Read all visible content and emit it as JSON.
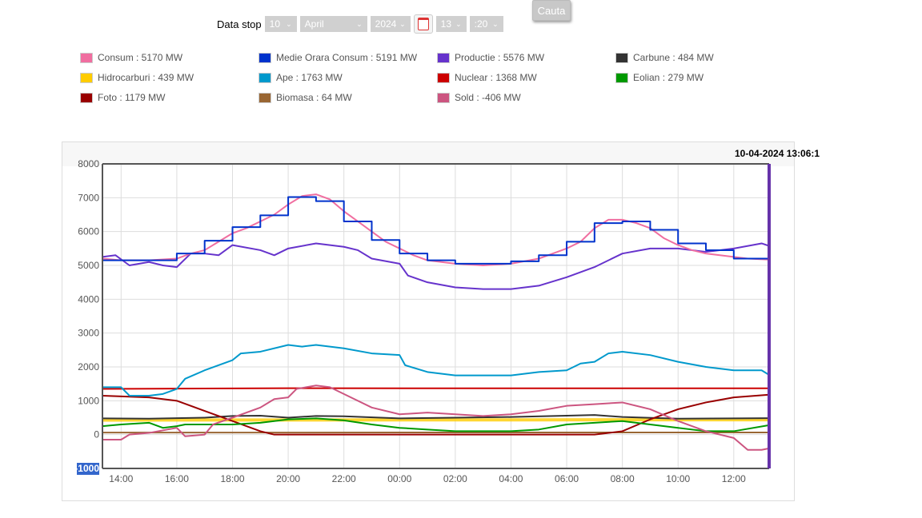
{
  "form": {
    "stop_label": "Data stop",
    "day": "10",
    "month": "April",
    "year": "2024",
    "hour": "13",
    "minute": ":20",
    "search_label": "Cauta"
  },
  "legend": [
    {
      "label": "Consum : 5170 MW",
      "color": "#f06ea0"
    },
    {
      "label": "Medie Orara Consum : 5191 MW",
      "color": "#0033cc"
    },
    {
      "label": "Productie : 5576 MW",
      "color": "#6633cc"
    },
    {
      "label": "Carbune : 484 MW",
      "color": "#333333"
    },
    {
      "label": "Hidrocarburi : 439 MW",
      "color": "#ffcc00"
    },
    {
      "label": "Ape : 1763 MW",
      "color": "#0099cc"
    },
    {
      "label": "Nuclear : 1368 MW",
      "color": "#cc0000"
    },
    {
      "label": "Eolian : 279 MW",
      "color": "#009900"
    },
    {
      "label": "Foto : 1179 MW",
      "color": "#990000"
    },
    {
      "label": "Biomasa : 64 MW",
      "color": "#996633"
    },
    {
      "label": "Sold : -406 MW",
      "color": "#cc5580"
    }
  ],
  "timestamp": "10-04-2024 13:06:1",
  "chart_data": {
    "type": "line",
    "x_unit": "hours since 00:00 of first day",
    "xlim": [
      13.33,
      37.27
    ],
    "ylim": [
      -1000,
      8000
    ],
    "yticks": [
      "8000",
      "7000",
      "6000",
      "5000",
      "4000",
      "3000",
      "2000",
      "1000",
      "0",
      "-1000"
    ],
    "xticks": [
      {
        "x": 14,
        "label": "14:00"
      },
      {
        "x": 16,
        "label": "16:00"
      },
      {
        "x": 18,
        "label": "18:00"
      },
      {
        "x": 20,
        "label": "20:00"
      },
      {
        "x": 22,
        "label": "22:00"
      },
      {
        "x": 24,
        "label": "00:00"
      },
      {
        "x": 26,
        "label": "02:00"
      },
      {
        "x": 28,
        "label": "04:00"
      },
      {
        "x": 30,
        "label": "06:00"
      },
      {
        "x": 32,
        "label": "08:00"
      },
      {
        "x": 34,
        "label": "10:00"
      },
      {
        "x": 36,
        "label": "12:00"
      }
    ],
    "series": [
      {
        "name": "Hidrocarburi",
        "color": "#ffcc00",
        "width": 4,
        "points": [
          [
            13.33,
            430
          ],
          [
            37.27,
            439
          ]
        ]
      },
      {
        "name": "Biomasa",
        "color": "#996633",
        "width": 2,
        "points": [
          [
            13.33,
            60
          ],
          [
            37.27,
            64
          ]
        ]
      },
      {
        "name": "Carbune",
        "color": "#333333",
        "width": 2,
        "points": [
          [
            13.33,
            480
          ],
          [
            15,
            470
          ],
          [
            17,
            500
          ],
          [
            18,
            550
          ],
          [
            19,
            560
          ],
          [
            20,
            500
          ],
          [
            21,
            550
          ],
          [
            22,
            540
          ],
          [
            24,
            480
          ],
          [
            26,
            500
          ],
          [
            28,
            520
          ],
          [
            30,
            560
          ],
          [
            31,
            580
          ],
          [
            32,
            520
          ],
          [
            34,
            470
          ],
          [
            36,
            480
          ],
          [
            37.27,
            484
          ]
        ]
      },
      {
        "name": "Nuclear",
        "color": "#cc0000",
        "width": 2,
        "points": [
          [
            13.33,
            1350
          ],
          [
            20,
            1370
          ],
          [
            37.27,
            1368
          ]
        ]
      },
      {
        "name": "Foto",
        "color": "#990000",
        "width": 2,
        "points": [
          [
            13.33,
            1150
          ],
          [
            15,
            1100
          ],
          [
            16,
            1000
          ],
          [
            17,
            700
          ],
          [
            18,
            400
          ],
          [
            19,
            100
          ],
          [
            19.5,
            0
          ],
          [
            31,
            0
          ],
          [
            32,
            100
          ],
          [
            33,
            450
          ],
          [
            34,
            750
          ],
          [
            35,
            950
          ],
          [
            36,
            1100
          ],
          [
            37.27,
            1179
          ]
        ]
      },
      {
        "name": "Eolian",
        "color": "#009900",
        "width": 2,
        "points": [
          [
            13.33,
            250
          ],
          [
            14,
            300
          ],
          [
            15,
            350
          ],
          [
            15.5,
            200
          ],
          [
            16,
            250
          ],
          [
            16.3,
            300
          ],
          [
            18,
            300
          ],
          [
            19,
            350
          ],
          [
            20,
            450
          ],
          [
            21,
            480
          ],
          [
            22,
            420
          ],
          [
            23,
            300
          ],
          [
            24,
            200
          ],
          [
            25,
            150
          ],
          [
            26,
            100
          ],
          [
            28,
            100
          ],
          [
            29,
            150
          ],
          [
            30,
            300
          ],
          [
            31,
            350
          ],
          [
            32,
            400
          ],
          [
            33,
            300
          ],
          [
            34,
            200
          ],
          [
            35,
            100
          ],
          [
            36,
            100
          ],
          [
            37.27,
            279
          ]
        ]
      },
      {
        "name": "Sold",
        "color": "#cc5580",
        "width": 2,
        "points": [
          [
            13.33,
            -150
          ],
          [
            14,
            -150
          ],
          [
            14.3,
            0
          ],
          [
            15,
            50
          ],
          [
            16,
            200
          ],
          [
            16.3,
            -50
          ],
          [
            17,
            0
          ],
          [
            17.3,
            300
          ],
          [
            18,
            500
          ],
          [
            19,
            800
          ],
          [
            19.5,
            1050
          ],
          [
            20,
            1100
          ],
          [
            20.3,
            1350
          ],
          [
            21,
            1450
          ],
          [
            21.5,
            1400
          ],
          [
            22,
            1200
          ],
          [
            23,
            800
          ],
          [
            24,
            600
          ],
          [
            25,
            650
          ],
          [
            26,
            600
          ],
          [
            27,
            550
          ],
          [
            28,
            600
          ],
          [
            29,
            700
          ],
          [
            30,
            850
          ],
          [
            31,
            900
          ],
          [
            32,
            950
          ],
          [
            33,
            750
          ],
          [
            34,
            400
          ],
          [
            35,
            100
          ],
          [
            36,
            -100
          ],
          [
            36.5,
            -450
          ],
          [
            37,
            -450
          ],
          [
            37.27,
            -406
          ]
        ]
      },
      {
        "name": "Ape",
        "color": "#0099cc",
        "width": 2,
        "points": [
          [
            13.33,
            1400
          ],
          [
            14,
            1400
          ],
          [
            14.3,
            1150
          ],
          [
            15,
            1150
          ],
          [
            15.5,
            1200
          ],
          [
            16,
            1350
          ],
          [
            16.3,
            1650
          ],
          [
            17,
            1900
          ],
          [
            18,
            2200
          ],
          [
            18.3,
            2400
          ],
          [
            19,
            2450
          ],
          [
            20,
            2650
          ],
          [
            20.5,
            2600
          ],
          [
            21,
            2650
          ],
          [
            22,
            2550
          ],
          [
            23,
            2400
          ],
          [
            24,
            2350
          ],
          [
            24.2,
            2050
          ],
          [
            25,
            1850
          ],
          [
            26,
            1750
          ],
          [
            28,
            1750
          ],
          [
            29,
            1850
          ],
          [
            30,
            1900
          ],
          [
            30.5,
            2100
          ],
          [
            31,
            2150
          ],
          [
            31.5,
            2400
          ],
          [
            32,
            2450
          ],
          [
            33,
            2350
          ],
          [
            34,
            2150
          ],
          [
            35,
            2000
          ],
          [
            36,
            1900
          ],
          [
            37,
            1900
          ],
          [
            37.27,
            1763
          ]
        ]
      },
      {
        "name": "Productie",
        "color": "#6633cc",
        "width": 2,
        "points": [
          [
            13.33,
            5250
          ],
          [
            13.8,
            5300
          ],
          [
            14.3,
            5000
          ],
          [
            15,
            5100
          ],
          [
            15.5,
            5000
          ],
          [
            16,
            4950
          ],
          [
            16.5,
            5350
          ],
          [
            17,
            5350
          ],
          [
            17.5,
            5300
          ],
          [
            18,
            5600
          ],
          [
            19,
            5450
          ],
          [
            19.5,
            5300
          ],
          [
            20,
            5500
          ],
          [
            21,
            5650
          ],
          [
            22,
            5550
          ],
          [
            22.5,
            5450
          ],
          [
            23,
            5200
          ],
          [
            24,
            5050
          ],
          [
            24.3,
            4700
          ],
          [
            25,
            4500
          ],
          [
            26,
            4350
          ],
          [
            27,
            4300
          ],
          [
            28,
            4300
          ],
          [
            29,
            4400
          ],
          [
            30,
            4650
          ],
          [
            31,
            4950
          ],
          [
            32,
            5350
          ],
          [
            33,
            5500
          ],
          [
            34,
            5500
          ],
          [
            35,
            5400
          ],
          [
            36,
            5500
          ],
          [
            37,
            5650
          ],
          [
            37.27,
            5576
          ]
        ]
      },
      {
        "name": "Consum",
        "color": "#f06ea0",
        "width": 2,
        "points": [
          [
            13.33,
            5200
          ],
          [
            14,
            5150
          ],
          [
            15,
            5150
          ],
          [
            16,
            5200
          ],
          [
            16.5,
            5350
          ],
          [
            17,
            5450
          ],
          [
            17.5,
            5700
          ],
          [
            18,
            5950
          ],
          [
            18.5,
            6100
          ],
          [
            19,
            6300
          ],
          [
            19.5,
            6500
          ],
          [
            20,
            6800
          ],
          [
            20.5,
            7050
          ],
          [
            21,
            7100
          ],
          [
            21.5,
            6950
          ],
          [
            22,
            6600
          ],
          [
            22.5,
            6300
          ],
          [
            23,
            6000
          ],
          [
            23.5,
            5700
          ],
          [
            24,
            5500
          ],
          [
            24.5,
            5300
          ],
          [
            25,
            5150
          ],
          [
            26,
            5050
          ],
          [
            27,
            5000
          ],
          [
            28,
            5050
          ],
          [
            29,
            5200
          ],
          [
            30,
            5500
          ],
          [
            30.5,
            5700
          ],
          [
            31,
            6100
          ],
          [
            31.5,
            6350
          ],
          [
            32,
            6350
          ],
          [
            32.5,
            6250
          ],
          [
            33,
            6100
          ],
          [
            33.5,
            5800
          ],
          [
            34,
            5600
          ],
          [
            34.5,
            5450
          ],
          [
            35,
            5350
          ],
          [
            35.5,
            5300
          ],
          [
            36,
            5250
          ],
          [
            36.5,
            5200
          ],
          [
            37.27,
            5170
          ]
        ]
      },
      {
        "name": "Medie Orara Consum",
        "color": "#0033cc",
        "width": 2,
        "step": true,
        "points": [
          [
            13.33,
            5150
          ],
          [
            16,
            5350
          ],
          [
            17,
            5730
          ],
          [
            18,
            6130
          ],
          [
            19,
            6480
          ],
          [
            20,
            7020
          ],
          [
            21,
            6900
          ],
          [
            22,
            6300
          ],
          [
            23,
            5750
          ],
          [
            24,
            5350
          ],
          [
            25,
            5150
          ],
          [
            26,
            5050
          ],
          [
            28,
            5120
          ],
          [
            29,
            5300
          ],
          [
            30,
            5700
          ],
          [
            31,
            6250
          ],
          [
            32,
            6300
          ],
          [
            33,
            6050
          ],
          [
            34,
            5650
          ],
          [
            35,
            5450
          ],
          [
            36,
            5200
          ],
          [
            37.27,
            5191
          ]
        ]
      }
    ]
  }
}
